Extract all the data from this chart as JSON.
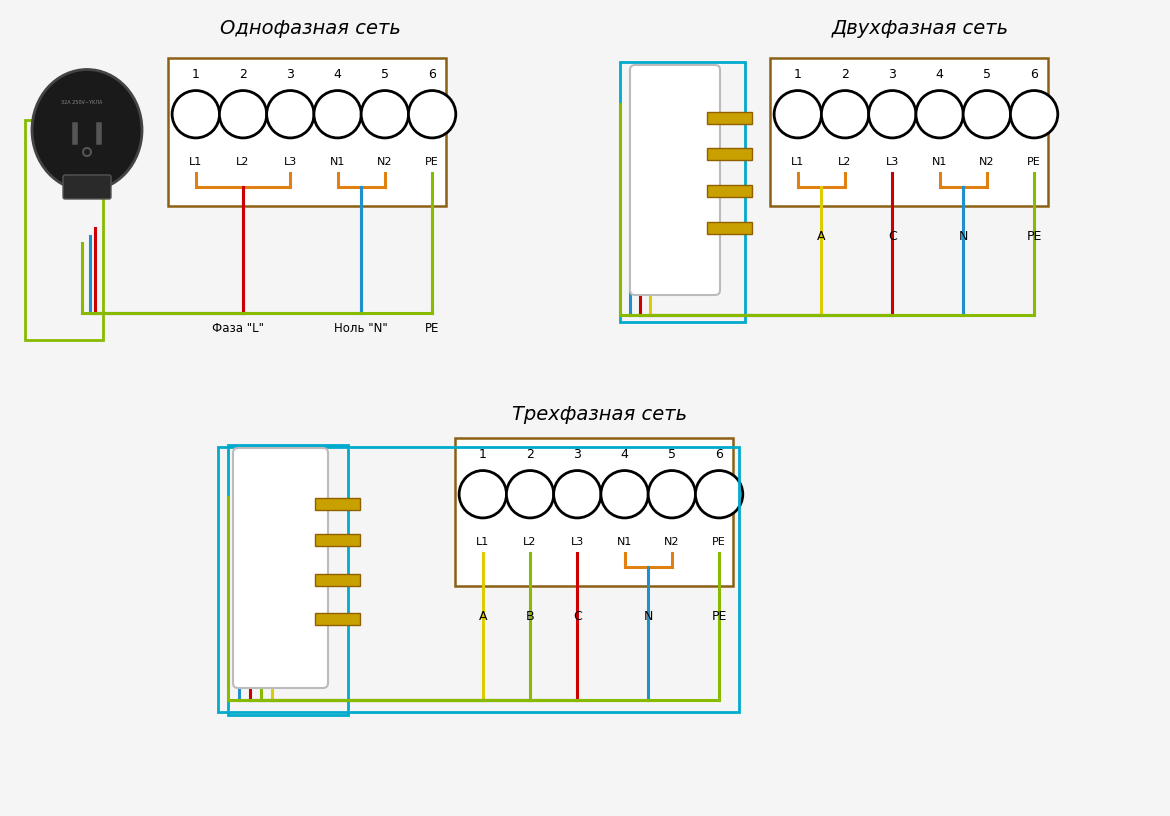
{
  "title1": "Однофазная сеть",
  "title2": "Двухфазная сеть",
  "title3": "Трехфазная сеть",
  "bg_color": "#f5f5f5",
  "box_color": "#8B6014",
  "terminal_labels": [
    "1",
    "2",
    "3",
    "4",
    "5",
    "6"
  ],
  "terminal_names": [
    "L1",
    "L2",
    "L3",
    "N1",
    "N2",
    "PE"
  ],
  "wire_orange": "#E08010",
  "wire_red": "#CC0000",
  "wire_blue": "#2090CC",
  "wire_green": "#88BB00",
  "wire_yellow": "#DDCC00",
  "wire_cyan": "#00AACC",
  "pin_gold": "#C8A000",
  "lw": 2.2
}
